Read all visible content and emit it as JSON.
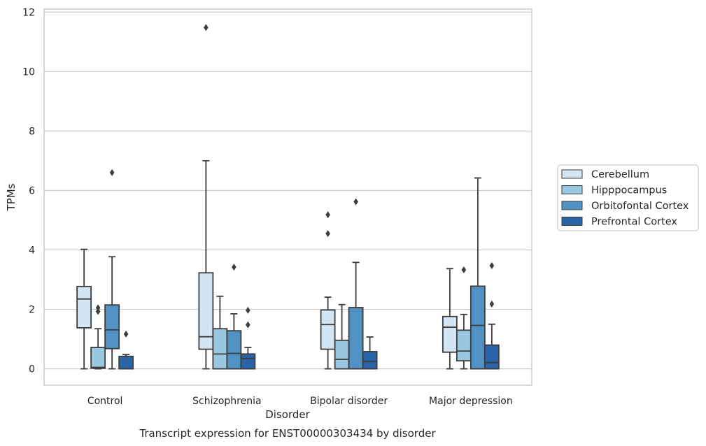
{
  "caption": "Transcript expression for ENST00000303434 by disorder",
  "chart_data": {
    "type": "box",
    "title": "",
    "xlabel": "Disorder",
    "ylabel": "TPMs",
    "ylim": [
      -0.55,
      12.1
    ],
    "yticks": [
      0,
      2,
      4,
      6,
      8,
      10,
      12
    ],
    "grid": "horizontal",
    "legend_position": "right",
    "categories": [
      "Control",
      "Schizophrenia",
      "Bipolar disorder",
      "Major depression"
    ],
    "series": [
      {
        "name": "Cerebellum",
        "color": "#d3e4f3",
        "boxes": [
          {
            "whislo": 0.0,
            "q1": 1.38,
            "med": 2.35,
            "q3": 2.77,
            "whishi": 4.02,
            "fliers": []
          },
          {
            "whislo": 0.0,
            "q1": 0.66,
            "med": 1.08,
            "q3": 3.23,
            "whishi": 7.0,
            "fliers": [
              11.48
            ]
          },
          {
            "whislo": 0.0,
            "q1": 0.66,
            "med": 1.49,
            "q3": 1.98,
            "whishi": 2.41,
            "fliers": [
              4.55,
              5.18
            ]
          },
          {
            "whislo": 0.0,
            "q1": 0.56,
            "med": 1.4,
            "q3": 1.76,
            "whishi": 3.37,
            "fliers": []
          }
        ]
      },
      {
        "name": "Hipppocampus",
        "color": "#9ac7e0",
        "boxes": [
          {
            "whislo": 0.0,
            "q1": 0.02,
            "med": 0.05,
            "q3": 0.72,
            "whishi": 1.35,
            "fliers": [
              1.93,
              2.05
            ]
          },
          {
            "whislo": 0.0,
            "q1": 0.0,
            "med": 0.5,
            "q3": 1.35,
            "whishi": 2.44,
            "fliers": []
          },
          {
            "whislo": 0.0,
            "q1": 0.0,
            "med": 0.32,
            "q3": 0.96,
            "whishi": 2.16,
            "fliers": []
          },
          {
            "whislo": 0.0,
            "q1": 0.27,
            "med": 0.6,
            "q3": 1.3,
            "whishi": 1.83,
            "fliers": [
              3.33
            ]
          }
        ]
      },
      {
        "name": "Orbitofontal Cortex",
        "color": "#4f92c3",
        "boxes": [
          {
            "whislo": 0.0,
            "q1": 0.68,
            "med": 1.31,
            "q3": 2.15,
            "whishi": 3.77,
            "fliers": [
              6.6
            ]
          },
          {
            "whislo": 0.0,
            "q1": 0.0,
            "med": 0.52,
            "q3": 1.28,
            "whishi": 1.85,
            "fliers": [
              3.42
            ]
          },
          {
            "whislo": 0.0,
            "q1": 0.0,
            "med": 0.0,
            "q3": 2.06,
            "whishi": 3.58,
            "fliers": [
              5.62
            ]
          },
          {
            "whislo": 0.0,
            "q1": 0.0,
            "med": 1.46,
            "q3": 2.78,
            "whishi": 6.42,
            "fliers": []
          }
        ]
      },
      {
        "name": "Prefrontal Cortex",
        "color": "#2964a8",
        "boxes": [
          {
            "whislo": 0.0,
            "q1": 0.0,
            "med": 0.0,
            "q3": 0.42,
            "whishi": 0.48,
            "fliers": [
              1.17
            ]
          },
          {
            "whislo": 0.0,
            "q1": 0.0,
            "med": 0.35,
            "q3": 0.5,
            "whishi": 0.72,
            "fliers": [
              1.48,
              1.97
            ]
          },
          {
            "whislo": 0.0,
            "q1": 0.0,
            "med": 0.25,
            "q3": 0.58,
            "whishi": 1.07,
            "fliers": []
          },
          {
            "whislo": 0.0,
            "q1": 0.0,
            "med": 0.21,
            "q3": 0.8,
            "whishi": 1.5,
            "fliers": [
              2.18,
              3.47
            ]
          }
        ]
      }
    ]
  }
}
